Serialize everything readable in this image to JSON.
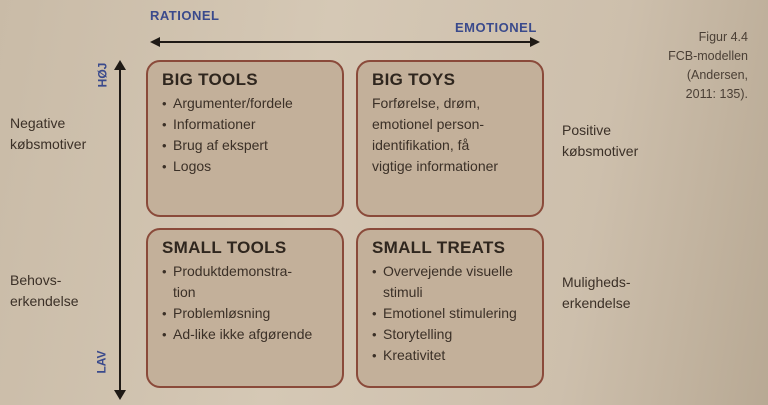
{
  "axes": {
    "left_label": "RATIONEL",
    "right_label": "EMOTIONEL",
    "top_label": "HØJ",
    "bottom_label": "LAV"
  },
  "side_labels": {
    "negative": "Negative\nkøbsmotiver",
    "behov": "Behovs-\nerkendelse",
    "positive": "Positive\nkøbsmotiver",
    "muligheds": "Muligheds-\nerkendelse"
  },
  "caption": "Figur 4.4\nFCB-modellen\n(Andersen,\n2011: 135).",
  "quadrants": {
    "big_tools": {
      "title": "BIG TOOLS",
      "items": [
        "Argumenter/fordele",
        "Informationer",
        "Brug af ekspert",
        "Logos"
      ]
    },
    "big_toys": {
      "title": "BIG TOYS",
      "text": "Forførelse, drøm,\nemotionel person-\nidentifikation, få\nvigtige informationer"
    },
    "small_tools": {
      "title": "SMALL TOOLS",
      "items": [
        "Produktdemonstra-\ntion",
        "Problemløsning",
        "Ad-like ikke afgørende"
      ]
    },
    "small_treats": {
      "title": "SMALL TREATS",
      "items": [
        "Overvejende visuelle\nstimuli",
        "Emotionel stimulering",
        "Storytelling",
        "Kreativitet"
      ]
    }
  },
  "colors": {
    "axis_text": "#3a4a8c",
    "box_fill": "#c3b09a",
    "box_border": "#8a4a3a"
  }
}
